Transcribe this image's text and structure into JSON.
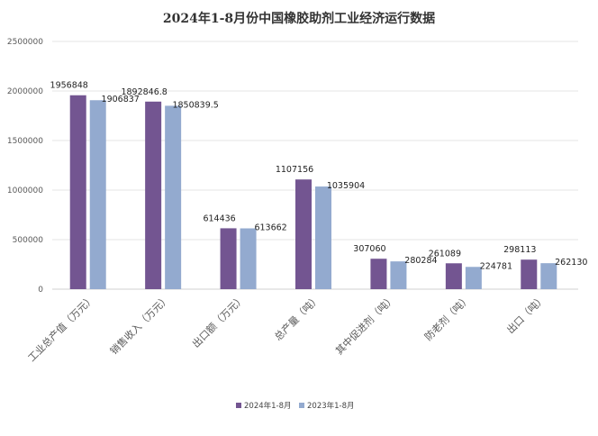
{
  "chart_data": {
    "type": "bar",
    "title": "2024年1-8月份中国橡胶助剂工业经济运行数据",
    "categories": [
      "工业总产值（万元）",
      "销售收入（万元）",
      "出口额（万元）",
      "总产量（吨）",
      "其中促进剂（吨）",
      "防老剂（吨）",
      "出口（吨）"
    ],
    "series": [
      {
        "name": "2024年1-8月",
        "color": "#735591",
        "values": [
          1956848,
          1892846.8,
          614436,
          1107156,
          307060,
          261089,
          298113
        ]
      },
      {
        "name": "2023年1-8月",
        "color": "#93AACF",
        "values": [
          1906837,
          1850839.5,
          613662,
          1035904,
          280284,
          224781,
          262130
        ]
      }
    ],
    "yticks": [
      0,
      500000,
      1000000,
      1500000,
      2000000,
      2500000
    ],
    "ylim": [
      0,
      2500000
    ],
    "grid": true,
    "legend": "bottom",
    "xlabel": "",
    "ylabel": ""
  }
}
